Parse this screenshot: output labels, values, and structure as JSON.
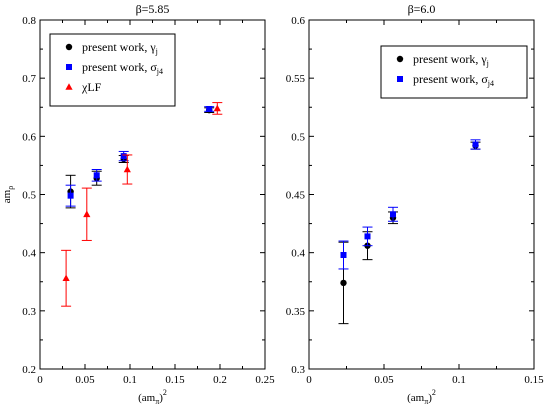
{
  "chart_data": [
    {
      "type": "scatter",
      "title": "β=5.85",
      "ylabel": "am",
      "ylabel_sub": "ρ",
      "xlabel": "(am",
      "xlabel_sub": "π",
      "xlabel_tail": ")",
      "xlabel_sup": "2",
      "xlim": [
        0,
        0.25
      ],
      "ylim": [
        0.2,
        0.8
      ],
      "x_ticks": [
        "0",
        "0.05",
        "0.1",
        "0.15",
        "0.2",
        "0.25"
      ],
      "x_tick_values": [
        0,
        0.05,
        0.1,
        0.15,
        0.2,
        0.25
      ],
      "y_ticks": [
        "0.2",
        "0.3",
        "0.4",
        "0.5",
        "0.6",
        "0.7",
        "0.8"
      ],
      "y_tick_values": [
        0.2,
        0.3,
        0.4,
        0.5,
        0.6,
        0.7,
        0.8
      ],
      "legend_position": "top-left",
      "series": [
        {
          "name": "present work, γ",
          "name_sub": "j",
          "color": "#000000",
          "marker": "circle",
          "points": [
            {
              "x": 0.034,
              "y": 0.505,
              "err": 0.028
            },
            {
              "x": 0.063,
              "y": 0.528,
              "err": 0.012
            },
            {
              "x": 0.093,
              "y": 0.561,
              "err": 0.006
            },
            {
              "x": 0.188,
              "y": 0.645,
              "err": 0.004
            }
          ]
        },
        {
          "name": "present work, σ",
          "name_sub": "j4",
          "color": "#0000ff",
          "marker": "square",
          "points": [
            {
              "x": 0.034,
              "y": 0.498,
              "err": 0.018
            },
            {
              "x": 0.063,
              "y": 0.533,
              "err": 0.01
            },
            {
              "x": 0.093,
              "y": 0.566,
              "err": 0.008
            },
            {
              "x": 0.188,
              "y": 0.647,
              "err": 0.004
            }
          ]
        },
        {
          "name": "χLF",
          "name_sub": "",
          "color": "#ff0000",
          "marker": "triangle",
          "points": [
            {
              "x": 0.029,
              "y": 0.356,
              "err": 0.048
            },
            {
              "x": 0.052,
              "y": 0.466,
              "err": 0.045
            },
            {
              "x": 0.097,
              "y": 0.543,
              "err": 0.025
            },
            {
              "x": 0.197,
              "y": 0.648,
              "err": 0.01
            }
          ]
        }
      ]
    },
    {
      "type": "scatter",
      "title": "β=6.0",
      "ylabel": "",
      "xlabel": "(am",
      "xlabel_sub": "π",
      "xlabel_tail": ")",
      "xlabel_sup": "2",
      "xlim": [
        0,
        0.15
      ],
      "ylim": [
        0.3,
        0.6
      ],
      "x_ticks": [
        "0",
        "0.05",
        "0.1",
        "0.15"
      ],
      "x_tick_values": [
        0,
        0.05,
        0.1,
        0.15
      ],
      "y_ticks": [
        "0.3",
        "0.35",
        "0.4",
        "0.45",
        "0.5",
        "0.55",
        "0.6"
      ],
      "y_tick_values": [
        0.3,
        0.35,
        0.4,
        0.45,
        0.5,
        0.55,
        0.6
      ],
      "legend_position": "top-right",
      "series": [
        {
          "name": "present work, γ",
          "name_sub": "j",
          "color": "#000000",
          "marker": "circle",
          "points": [
            {
              "x": 0.023,
              "y": 0.374,
              "err": 0.035
            },
            {
              "x": 0.039,
              "y": 0.406,
              "err": 0.012
            },
            {
              "x": 0.056,
              "y": 0.43,
              "err": 0.005
            },
            {
              "x": 0.111,
              "y": 0.492,
              "err": 0.003
            }
          ]
        },
        {
          "name": "present work, σ",
          "name_sub": "j4",
          "color": "#0000ff",
          "marker": "square",
          "points": [
            {
              "x": 0.023,
              "y": 0.398,
              "err": 0.012
            },
            {
              "x": 0.039,
              "y": 0.414,
              "err": 0.008
            },
            {
              "x": 0.056,
              "y": 0.433,
              "err": 0.006
            },
            {
              "x": 0.111,
              "y": 0.493,
              "err": 0.004
            }
          ]
        }
      ]
    }
  ]
}
